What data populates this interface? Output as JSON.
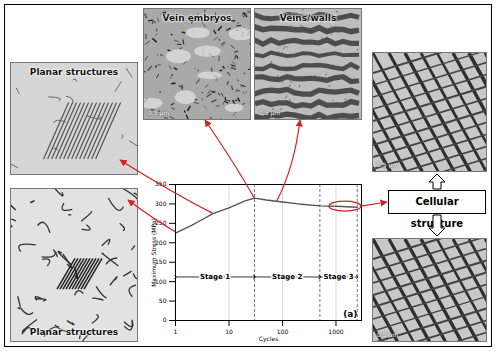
{
  "chart_data": {
    "type": "line",
    "x": [
      1,
      2,
      3,
      5,
      10,
      20,
      30,
      50,
      100,
      200,
      500,
      1000,
      2000,
      2500
    ],
    "values": [
      225,
      245,
      258,
      275,
      290,
      308,
      315,
      310,
      305,
      300,
      295,
      294,
      292,
      291
    ],
    "color": "#555555",
    "log": "x",
    "xlim": [
      1,
      3000
    ],
    "xticks": [
      1,
      10,
      100,
      1000
    ],
    "ylim": [
      0,
      350
    ],
    "yticks": [
      0,
      50,
      100,
      150,
      200,
      250,
      300,
      350
    ],
    "xlabel": "Cycles",
    "ylabel": "Maximum Stress (MPa)",
    "grid": true,
    "panel_label": "(a)",
    "stages": [
      {
        "label": "Stage 1",
        "from": 1,
        "to": 30
      },
      {
        "label": "Stage 2",
        "from": 30,
        "to": 500
      },
      {
        "label": "Stage 3",
        "from": 500,
        "to": 2500
      }
    ]
  },
  "micrographs": [
    {
      "label": "Planar structures",
      "points_to": [
        5,
        275
      ]
    },
    {
      "label": "Planar structures",
      "points_to": [
        1,
        228
      ]
    },
    {
      "label": "Vein embryos",
      "scale_bar": "0.5 μm",
      "points_to": [
        30,
        315
      ]
    },
    {
      "label": "Veins/walls",
      "scale_bar": "0.5 μm",
      "points_to": [
        80,
        306
      ]
    }
  ],
  "cellular_group": {
    "label": "Cellular structure",
    "points_to": [
      1500,
      293
    ],
    "images": [
      {
        "scale_bar": "0.5 μm"
      },
      {
        "scale_bar": "0.5 μm"
      }
    ]
  }
}
